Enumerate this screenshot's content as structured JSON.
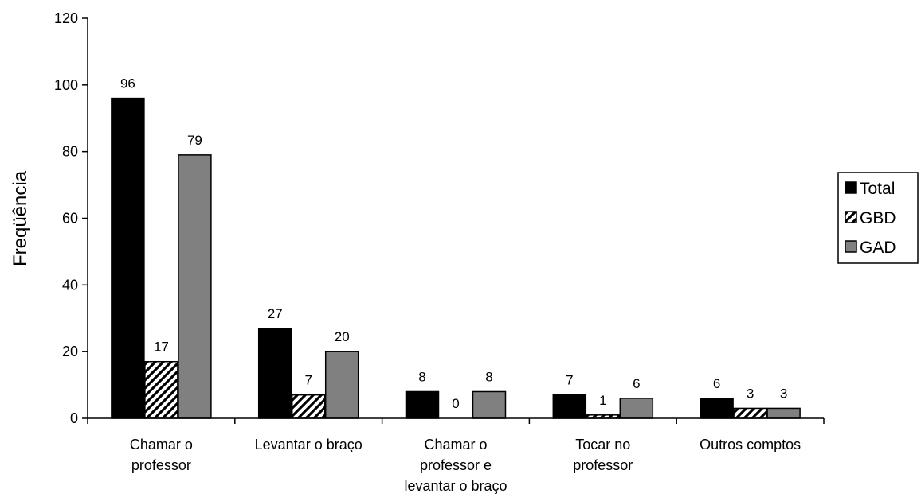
{
  "chart_data": {
    "type": "bar",
    "title": "",
    "xlabel": "",
    "ylabel": "Freqüência",
    "ylim": [
      0,
      120
    ],
    "yticks": [
      "0",
      "20",
      "40",
      "60",
      "80",
      "100",
      "120"
    ],
    "grid": false,
    "legend_position": "right",
    "categories": [
      [
        "Chamar o",
        "professor"
      ],
      [
        "Levantar o braço"
      ],
      [
        "Chamar o",
        "professor e",
        "levantar o braço"
      ],
      [
        "Tocar no",
        "professor"
      ],
      [
        "Outros comptos"
      ]
    ],
    "series": [
      {
        "name": "Total",
        "values": [
          96,
          27,
          8,
          7,
          6
        ],
        "fill": "#000000"
      },
      {
        "name": "GBD",
        "values": [
          17,
          7,
          0,
          1,
          3
        ],
        "fill": "hatch"
      },
      {
        "name": "GAD",
        "values": [
          79,
          20,
          8,
          6,
          3
        ],
        "fill": "#808080"
      }
    ],
    "data_labels": [
      [
        "96",
        "27",
        "8",
        "7",
        "6"
      ],
      [
        "17",
        "7",
        "0",
        "1",
        "3"
      ],
      [
        "79",
        "20",
        "8",
        "6",
        "3"
      ]
    ]
  }
}
